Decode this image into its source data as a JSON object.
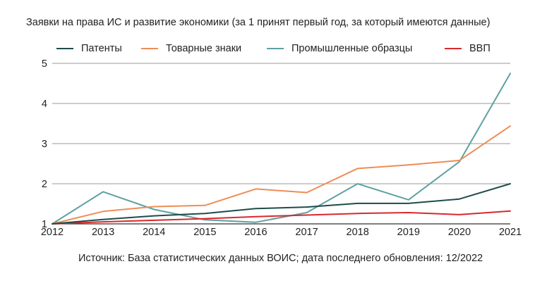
{
  "chart_data": {
    "type": "line",
    "title": "Заявки на права ИС и развитие экономики (за 1 принят первый год, за который имеются данные)",
    "xlabel": "",
    "ylabel": "",
    "x": [
      "2012",
      "2013",
      "2014",
      "2015",
      "2016",
      "2017",
      "2018",
      "2019",
      "2020",
      "2021"
    ],
    "y_ticks": [
      "1",
      "2",
      "3",
      "4",
      "5"
    ],
    "ylim": [
      1,
      5
    ],
    "grid": "horizontal",
    "legend_position": "top",
    "series": [
      {
        "name": "Патенты",
        "color": "#1d4d4a",
        "values": [
          1.0,
          1.11,
          1.2,
          1.26,
          1.38,
          1.42,
          1.51,
          1.51,
          1.62,
          2.0
        ]
      },
      {
        "name": "Товарные знаки",
        "color": "#ee8d55",
        "values": [
          1.0,
          1.31,
          1.43,
          1.46,
          1.87,
          1.78,
          2.38,
          2.47,
          2.58,
          3.44
        ]
      },
      {
        "name": "Промышленные образцы",
        "color": "#5fa1a1",
        "values": [
          1.0,
          1.8,
          1.36,
          1.1,
          1.04,
          1.28,
          2.0,
          1.6,
          2.55,
          4.75
        ]
      },
      {
        "name": "ВВП",
        "color": "#d9282f",
        "values": [
          1.0,
          1.05,
          1.09,
          1.13,
          1.18,
          1.22,
          1.26,
          1.28,
          1.23,
          1.32
        ]
      }
    ],
    "source": "Источник: База статистических данных ВОИС; дата последнего обновления: 12/2022"
  }
}
